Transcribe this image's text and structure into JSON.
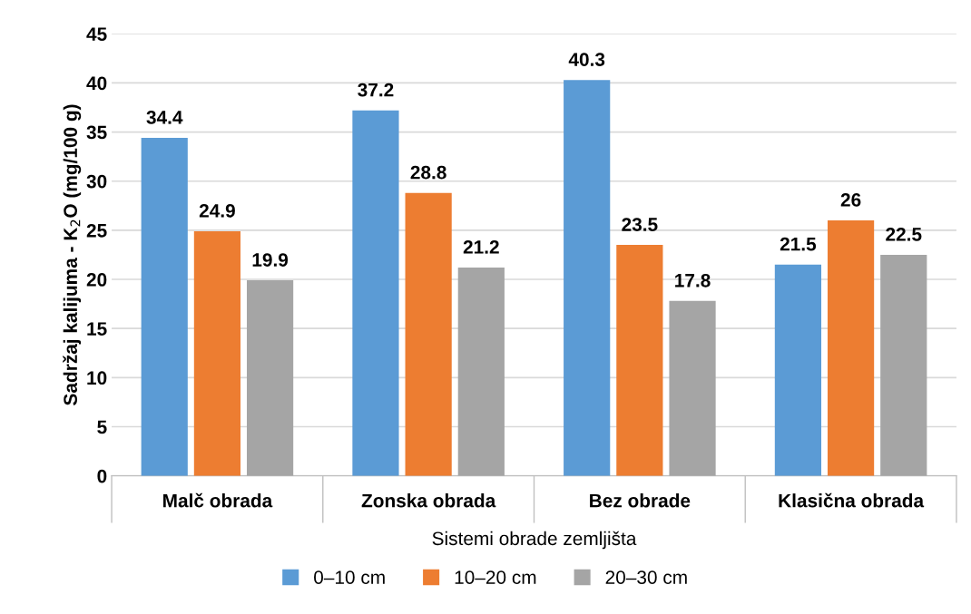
{
  "chart_data": {
    "type": "bar",
    "xlabel": "Sistemi obrade zemljišta",
    "ylabel": "Sadržaj kalijuma - K$_{2}$O (mg/100 g)",
    "categories": [
      "Malč obrada",
      "Zonska obrada",
      "Bez obrade",
      "Klasična obrada"
    ],
    "series": [
      {
        "name": "0–10 cm",
        "color": "#5b9bd5",
        "values": [
          34.4,
          37.2,
          40.3,
          21.5
        ]
      },
      {
        "name": "10–20 cm",
        "color": "#ed7d31",
        "values": [
          24.9,
          28.8,
          23.5,
          26
        ]
      },
      {
        "name": "20–30 cm",
        "color": "#a5a5a5",
        "values": [
          19.9,
          21.2,
          17.8,
          22.5
        ]
      }
    ],
    "ylim": [
      0,
      45
    ],
    "yticks": [
      0,
      5,
      10,
      15,
      20,
      25,
      30,
      35,
      40,
      45
    ],
    "grid": "y",
    "legend": "bottom",
    "data_labels": true
  }
}
